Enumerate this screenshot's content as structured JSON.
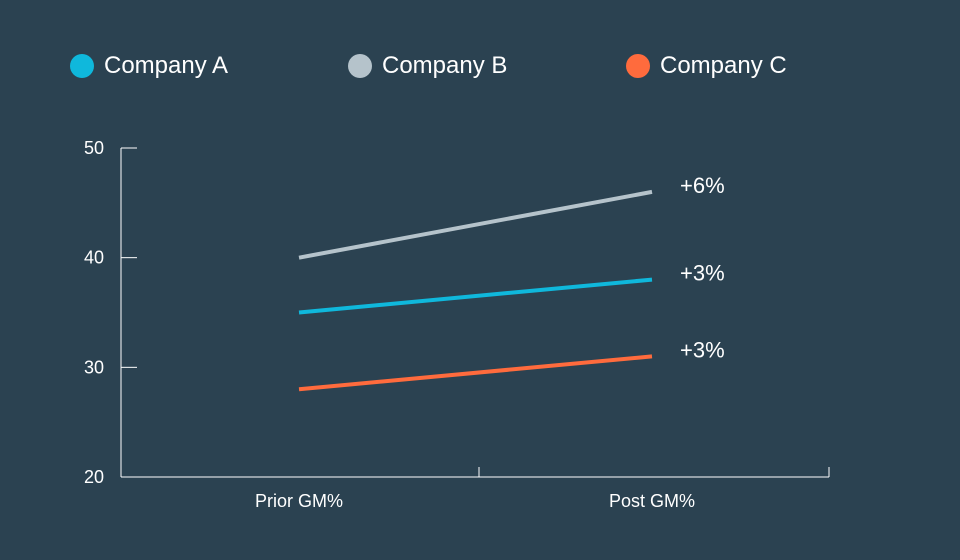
{
  "colors": {
    "background": "#2b4251",
    "axis": "#ffffff",
    "company_a": "#0fb8dc",
    "company_b": "#b5c3cb",
    "company_c": "#ff6b3d"
  },
  "chart_data": {
    "type": "line",
    "title": "",
    "xlabel": "",
    "ylabel": "",
    "categories": [
      "Prior GM%",
      "Post GM%"
    ],
    "ylim": [
      20,
      50
    ],
    "yticks": [
      20,
      30,
      40,
      50
    ],
    "grid": false,
    "legend_position": "top",
    "series": [
      {
        "name": "Company A",
        "values": [
          35,
          38
        ],
        "color": "#0fb8dc",
        "change_label": "+3%"
      },
      {
        "name": "Company B",
        "values": [
          40,
          46
        ],
        "color": "#b5c3cb",
        "change_label": "+6%"
      },
      {
        "name": "Company C",
        "values": [
          28,
          31
        ],
        "color": "#ff6b3d",
        "change_label": "+3%"
      }
    ]
  }
}
